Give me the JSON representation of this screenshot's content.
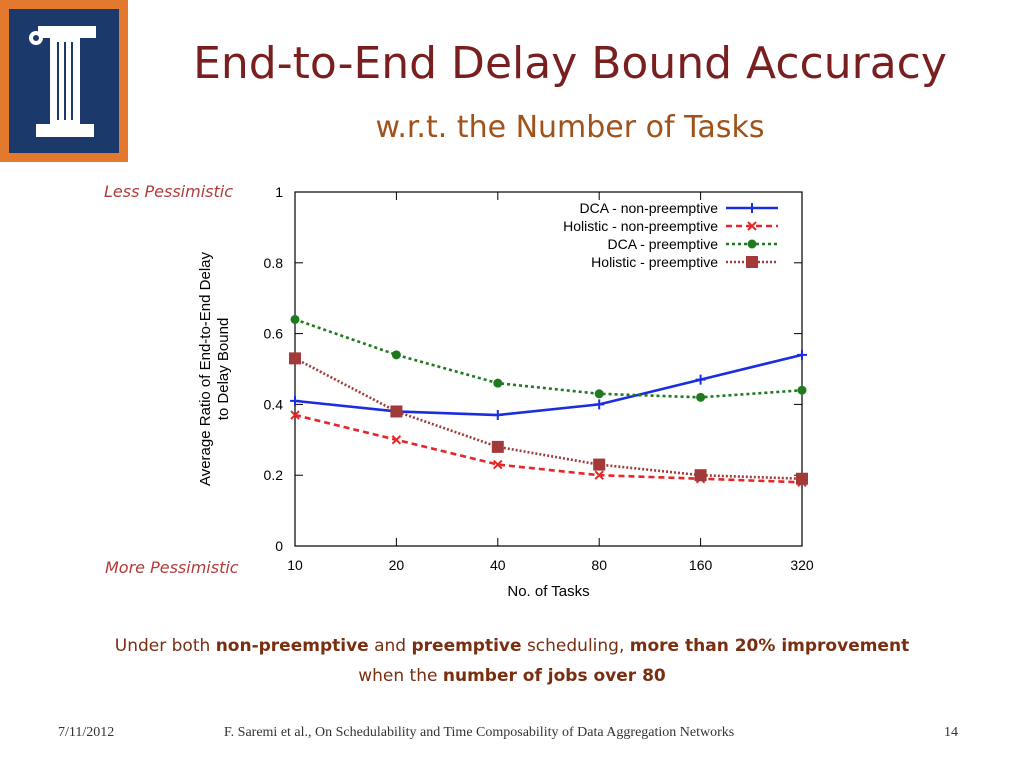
{
  "slide": {
    "title": "End-to-End Delay Bound Accuracy",
    "subtitle": "w.r.t. the Number of Tasks",
    "annotation_top": "Less Pessimistic",
    "annotation_bottom": "More Pessimistic",
    "summary": {
      "p1": "Under both ",
      "b1": "non-preemptive",
      "p2": " and ",
      "b2": "preemptive",
      "p3": " scheduling, ",
      "b3": "more than 20% improvement",
      "p4": "when the ",
      "b4": "number of jobs over 80"
    },
    "footer": {
      "date": "7/11/2012",
      "citation": "F. Saremi et al., On Schedulability and Time Composability of Data Aggregation Networks",
      "page": "14"
    }
  },
  "logo": {
    "outer_color": "#e2792f",
    "inner_color": "#1b3a6b",
    "mark_color": "#ffffff"
  },
  "chart_data": {
    "type": "line",
    "x": [
      "10",
      "20",
      "40",
      "80",
      "160",
      "320"
    ],
    "xlabel": "No. of Tasks",
    "ylabel_lines": [
      "Average Ratio of End-to-End Delay",
      "to Delay Bound"
    ],
    "ylim": [
      0,
      1
    ],
    "yticks": [
      "0",
      "0.2",
      "0.4",
      "0.6",
      "0.8",
      "1"
    ],
    "legend_position": "top-right",
    "series": [
      {
        "name": "DCA - non-preemptive",
        "color": "#1a2ee0",
        "dash": "",
        "marker": "plus",
        "values": [
          0.41,
          0.38,
          0.37,
          0.4,
          0.47,
          0.54
        ]
      },
      {
        "name": "Holistic - non-preemptive",
        "color": "#e8262a",
        "dash": "6,4",
        "marker": "cross",
        "values": [
          0.37,
          0.3,
          0.23,
          0.2,
          0.19,
          0.18
        ]
      },
      {
        "name": "DCA - preemptive",
        "color": "#1f7a1f",
        "dash": "3,3",
        "marker": "circle",
        "values": [
          0.64,
          0.54,
          0.46,
          0.43,
          0.42,
          0.44
        ]
      },
      {
        "name": "Holistic - preemptive",
        "color": "#a33a3a",
        "dash": "2,2",
        "marker": "square",
        "values": [
          0.53,
          0.38,
          0.28,
          0.23,
          0.2,
          0.19
        ]
      }
    ]
  }
}
